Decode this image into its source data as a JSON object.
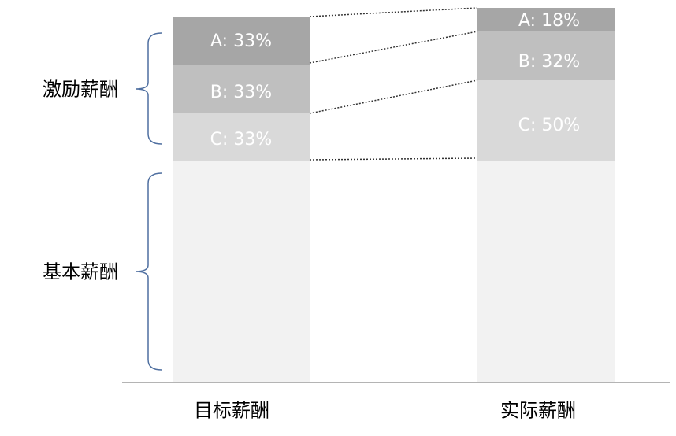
{
  "side_labels": [
    "激励薪酬",
    "基本薪酬"
  ],
  "bars": [
    {
      "label": "目标薪酬",
      "segments": [
        "A: 33%",
        "B: 33%",
        "C: 33%"
      ]
    },
    {
      "label": "实际薪酬",
      "segments": [
        "A: 18%",
        "B: 32%",
        "C: 50%"
      ]
    }
  ]
}
